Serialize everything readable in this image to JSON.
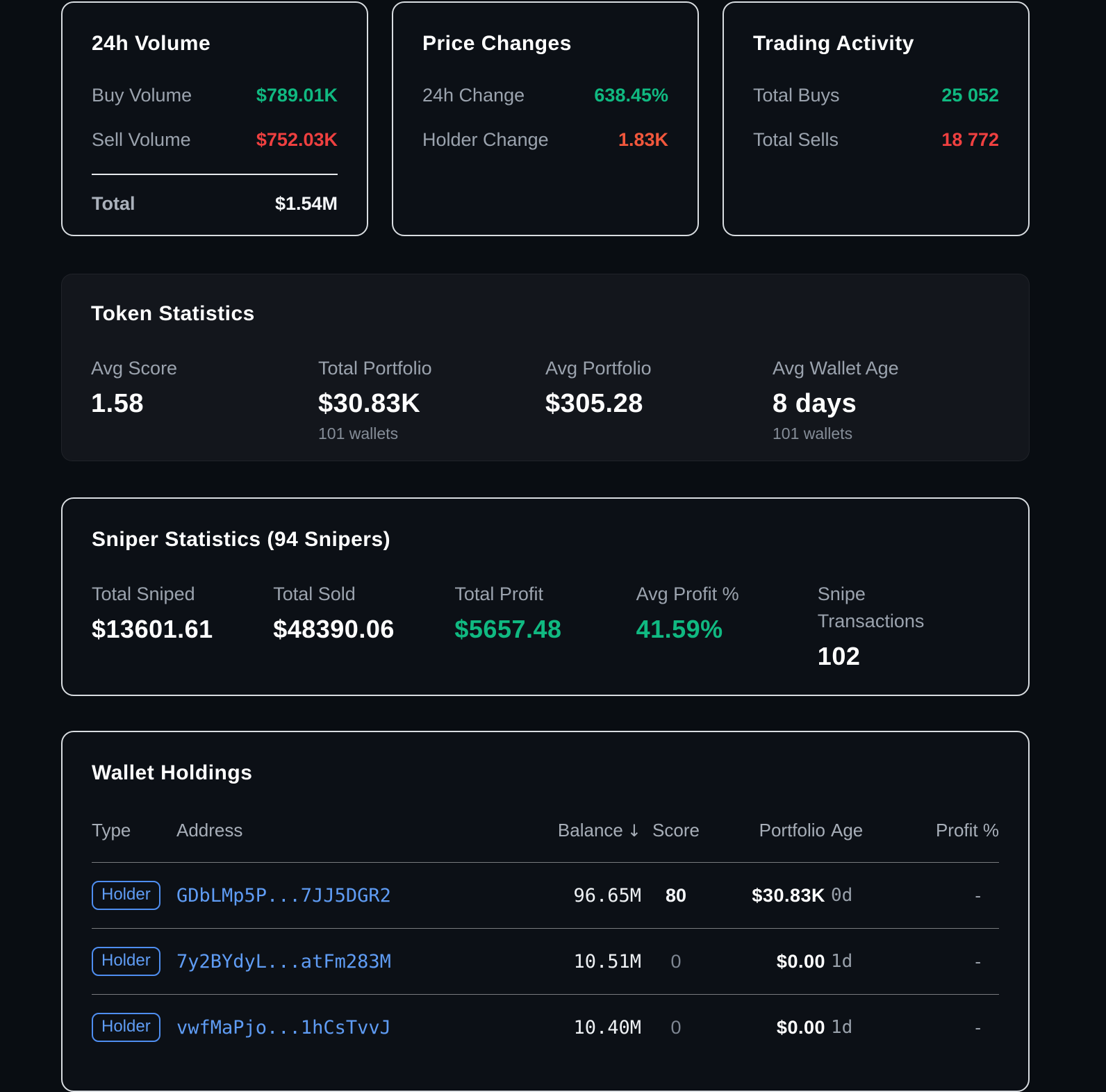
{
  "colors": {
    "positive_green": "#10b981",
    "negative_red": "#ef4040",
    "warning_orange": "#f2573c",
    "link_blue": "#5f9cf4",
    "muted_gray": "#9ba3ae"
  },
  "volume_card": {
    "title": "24h Volume",
    "buy_label": "Buy Volume",
    "buy_value": "$789.01K",
    "sell_label": "Sell Volume",
    "sell_value": "$752.03K",
    "total_label": "Total",
    "total_value": "$1.54M"
  },
  "price_card": {
    "title": "Price Changes",
    "change_label": "24h Change",
    "change_value": "638.45%",
    "holder_label": "Holder Change",
    "holder_value": "1.83K"
  },
  "activity_card": {
    "title": "Trading Activity",
    "buys_label": "Total Buys",
    "buys_value": "25 052",
    "sells_label": "Total Sells",
    "sells_value": "18 772"
  },
  "token_stats": {
    "title": "Token Statistics",
    "stats": [
      {
        "label": "Avg Score",
        "value": "1.58",
        "sub": ""
      },
      {
        "label": "Total Portfolio",
        "value": "$30.83K",
        "sub": "101 wallets"
      },
      {
        "label": "Avg Portfolio",
        "value": "$305.28",
        "sub": ""
      },
      {
        "label": "Avg Wallet Age",
        "value": "8 days",
        "sub": "101 wallets"
      }
    ]
  },
  "sniper_stats": {
    "title": "Sniper Statistics (94 Snipers)",
    "stats": [
      {
        "label": "Total Sniped",
        "value": "$13601.61"
      },
      {
        "label": "Total Sold",
        "value": "$48390.06"
      },
      {
        "label": "Total Profit",
        "value": "$5657.48"
      },
      {
        "label": "Avg Profit %",
        "value": "41.59%"
      },
      {
        "label": "Snipe Transactions",
        "value": "102"
      }
    ]
  },
  "holdings": {
    "title": "Wallet Holdings",
    "columns": {
      "type": "Type",
      "address": "Address",
      "balance": "Balance",
      "sort_arrow": "↓",
      "score": "Score",
      "portfolio": "Portfolio",
      "age": "Age",
      "profit": "Profit %"
    },
    "rows": [
      {
        "type": "Holder",
        "address": "GDbLMp5P...7JJ5DGR2",
        "balance": "96.65M",
        "score": "80",
        "portfolio": "$30.83K",
        "age": "0d",
        "profit": "-"
      },
      {
        "type": "Holder",
        "address": "7y2BYdyL...atFm283M",
        "balance": "10.51M",
        "score": "0",
        "portfolio": "$0.00",
        "age": "1d",
        "profit": "-"
      },
      {
        "type": "Holder",
        "address": "vwfMaPjo...1hCsTvvJ",
        "balance": "10.40M",
        "score": "0",
        "portfolio": "$0.00",
        "age": "1d",
        "profit": "-"
      }
    ]
  }
}
